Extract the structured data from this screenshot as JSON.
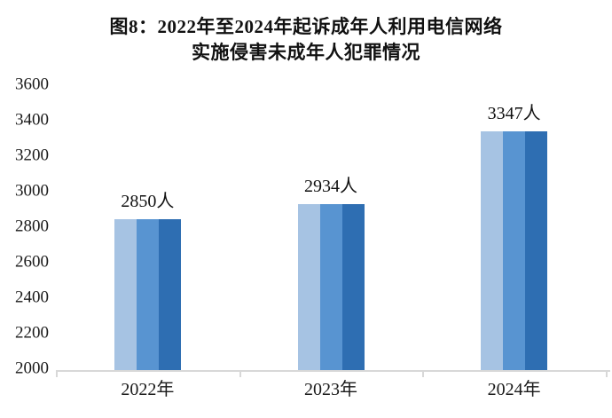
{
  "title": {
    "line1": "图8：2022年至2024年起诉成年人利用电信网络",
    "line2": "实施侵害未成年人犯罪情况"
  },
  "chart_data": {
    "type": "bar",
    "title": "图8：2022年至2024年起诉成年人利用电信网络实施侵害未成年人犯罪情况",
    "categories": [
      "2022年",
      "2023年",
      "2024年"
    ],
    "values": [
      2850,
      2934,
      3347
    ],
    "value_labels": [
      "2850人",
      "2934人",
      "3347人"
    ],
    "xlabel": "",
    "ylabel": "",
    "ylim": [
      2000,
      3600
    ],
    "ytick_step": 200,
    "yticks": [
      2000,
      2200,
      2400,
      2600,
      2800,
      3000,
      3200,
      3400,
      3600
    ],
    "grid": false,
    "legend": "none",
    "bar_stripe_colors": [
      "#a6c3e3",
      "#5894d1",
      "#2e6eb2"
    ],
    "axis_line_color": "#d8d8d8",
    "text_color": "#1a1a1a"
  }
}
